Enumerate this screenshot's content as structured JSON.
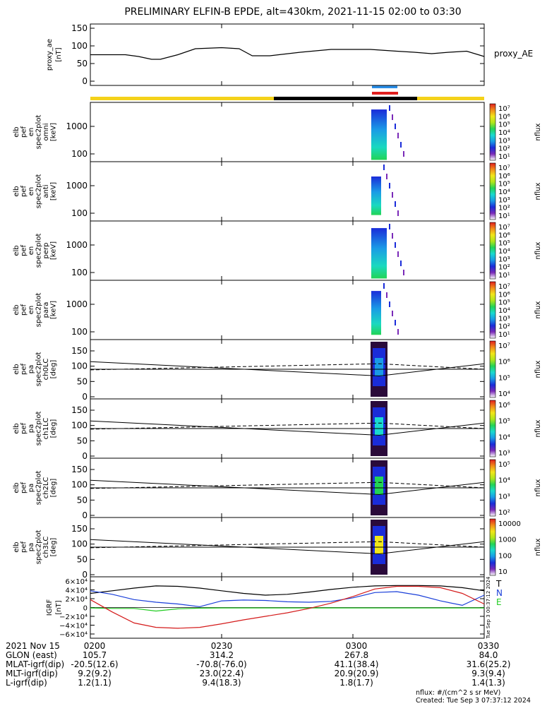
{
  "title": "PRELIMINARY ELFIN-B EPDE, alt=430km, 2021-11-15 02:00 to 03:30",
  "panels": [
    {
      "id": "proxy_ae",
      "ylabel": [
        "proxy_ae",
        "[nT]"
      ],
      "yticks": [
        "150",
        "100",
        "50",
        "0"
      ],
      "right_label": "proxy_AE"
    },
    {
      "id": "en_omni",
      "ylabel": [
        "elb",
        "pef",
        "en",
        "spec2plot",
        "omni",
        "[keV]"
      ],
      "yticks": [
        "1000",
        "100"
      ],
      "cbar_ticks": [
        "10⁷",
        "10⁶",
        "10⁵",
        "10⁴",
        "10³",
        "10²",
        "10¹"
      ],
      "cbar_label": "nflux"
    },
    {
      "id": "en_anti",
      "ylabel": [
        "elb",
        "pef",
        "en",
        "spec2plot",
        "anti",
        "[keV]"
      ],
      "yticks": [
        "1000",
        "100"
      ],
      "cbar_ticks": [
        "10⁷",
        "10⁶",
        "10⁵",
        "10⁴",
        "10³",
        "10²",
        "10¹"
      ],
      "cbar_label": "nflux"
    },
    {
      "id": "en_perp",
      "ylabel": [
        "elb",
        "pef",
        "en",
        "spec2plot",
        "perp",
        "[keV]"
      ],
      "yticks": [
        "1000",
        "100"
      ],
      "cbar_ticks": [
        "10⁷",
        "10⁶",
        "10⁵",
        "10⁴",
        "10³",
        "10²",
        "10¹"
      ],
      "cbar_label": "nflux"
    },
    {
      "id": "en_para",
      "ylabel": [
        "elb",
        "pef",
        "en",
        "spec2plot",
        "para",
        "[keV]"
      ],
      "yticks": [
        "1000",
        "100"
      ],
      "cbar_ticks": [
        "10⁷",
        "10⁶",
        "10⁵",
        "10⁴",
        "10³",
        "10²",
        "10¹"
      ],
      "cbar_label": "nflux"
    },
    {
      "id": "pa_ch0",
      "ylabel": [
        "elb",
        "pef",
        "pa",
        "spec2plot",
        "ch0LC",
        "[deg]"
      ],
      "yticks": [
        "150",
        "100",
        "50",
        "0"
      ],
      "cbar_ticks": [
        "10⁷",
        "10⁶",
        "10⁵",
        "10⁴"
      ],
      "cbar_label": "nflux"
    },
    {
      "id": "pa_ch1",
      "ylabel": [
        "elb",
        "pef",
        "pa",
        "spec2plot",
        "ch1LC",
        "[deg]"
      ],
      "yticks": [
        "150",
        "100",
        "50",
        "0"
      ],
      "cbar_ticks": [
        "10⁶",
        "10⁵",
        "10⁴",
        "10³"
      ],
      "cbar_label": "nflux"
    },
    {
      "id": "pa_ch2",
      "ylabel": [
        "elb",
        "pef",
        "pa",
        "spec2plot",
        "ch2LC",
        "[deg]"
      ],
      "yticks": [
        "150",
        "100",
        "50",
        "0"
      ],
      "cbar_ticks": [
        "10⁵",
        "10⁴",
        "10³",
        "10²"
      ],
      "cbar_label": "nflux"
    },
    {
      "id": "pa_ch3",
      "ylabel": [
        "elb",
        "pef",
        "pa",
        "spec2plot",
        "ch3LC",
        "[deg]"
      ],
      "yticks": [
        "150",
        "100",
        "50",
        "0"
      ],
      "cbar_ticks": [
        "10000",
        "1000",
        "100",
        "10"
      ],
      "cbar_label": "nflux"
    },
    {
      "id": "igrf",
      "ylabel": [
        "IGRF",
        "[nT]"
      ],
      "yticks": [
        "6×10⁴",
        "4×10⁴",
        "2×10⁴",
        "0",
        "−2×10⁴",
        "−4×10⁴",
        "−6×10⁴"
      ],
      "legend": [
        {
          "text": "T",
          "color": "#000000"
        },
        {
          "text": "N",
          "color": "#1a3fd9"
        },
        {
          "text": "E",
          "color": "#22cc22"
        }
      ]
    }
  ],
  "chart_data": [
    {
      "type": "line",
      "panel": "proxy_ae",
      "ylabel": "proxy_ae [nT]",
      "ylim": [
        0,
        150
      ],
      "x": [
        "02:00",
        "02:08",
        "02:11",
        "02:14",
        "02:16",
        "02:20",
        "02:24",
        "02:30",
        "02:34",
        "02:37",
        "02:41",
        "02:48",
        "02:55",
        "03:04",
        "03:10",
        "03:14",
        "03:18",
        "03:22",
        "03:26",
        "03:30"
      ],
      "series": [
        {
          "name": "proxy_AE",
          "values": [
            75,
            75,
            70,
            62,
            62,
            75,
            92,
            95,
            92,
            72,
            72,
            82,
            90,
            90,
            85,
            82,
            78,
            82,
            85,
            70
          ]
        }
      ]
    },
    {
      "type": "line",
      "panel": "pa_ch0..pa_ch3",
      "ylabel": "[deg]",
      "ylim": [
        0,
        180
      ],
      "x": [
        "02:00",
        "03:06",
        "03:30"
      ],
      "series": [
        {
          "values": [
            115,
            68,
            108
          ],
          "style": "solid"
        },
        {
          "values": [
            88,
            108,
            90
          ],
          "style": "dashed"
        },
        {
          "values": [
            90,
            90,
            90
          ],
          "style": "solid"
        }
      ]
    },
    {
      "type": "line",
      "panel": "igrf",
      "ylabel": "IGRF [nT]",
      "ylim": [
        -60000,
        60000
      ],
      "x": [
        "02:00",
        "02:05",
        "02:10",
        "02:15",
        "02:20",
        "02:25",
        "02:30",
        "02:35",
        "02:40",
        "02:45",
        "02:50",
        "02:55",
        "03:00",
        "03:05",
        "03:10",
        "03:15",
        "03:20",
        "03:25",
        "03:30"
      ],
      "series": [
        {
          "name": "T",
          "values": [
            32000,
            38000,
            44000,
            49000,
            48000,
            44000,
            38000,
            32000,
            28000,
            30000,
            35000,
            41000,
            46000,
            49000,
            50000,
            50000,
            49000,
            45000,
            38000
          ]
        },
        {
          "name": "N",
          "values": [
            38000,
            30000,
            18000,
            12000,
            8000,
            2000,
            15000,
            17000,
            16000,
            13000,
            12000,
            14000,
            22000,
            34000,
            36000,
            28000,
            15000,
            5000,
            28000
          ]
        },
        {
          "name": "E",
          "values": [
            -1000,
            -2000,
            -2000,
            -8000,
            -3000,
            -1500,
            -1000,
            -1000,
            -1000,
            -1000,
            -1000,
            -1000,
            -1000,
            -1000,
            -1000,
            -1000,
            -1000,
            -1000,
            -1000
          ]
        },
        {
          "name": "",
          "values": [
            18000,
            -10000,
            -35000,
            -45000,
            -47000,
            -45000,
            -37000,
            -28000,
            -20000,
            -12000,
            -2000,
            10000,
            25000,
            42000,
            48000,
            48000,
            45000,
            32000,
            8000
          ]
        }
      ]
    }
  ],
  "footer": {
    "columns": [
      "0200",
      "0230",
      "0300",
      "0330"
    ],
    "rows": [
      {
        "label": "2021 Nov 15",
        "values": [
          "0200",
          "0230",
          "0300",
          "0330"
        ]
      },
      {
        "label": "GLON (east)",
        "values": [
          "105.7",
          "314.2",
          "267.8",
          "84.0"
        ]
      },
      {
        "label": "MLAT-igrf(dip)",
        "values": [
          "-20.5(12.6)",
          "-70.8(-76.0)",
          "41.1(38.4)",
          "31.6(25.2)"
        ]
      },
      {
        "label": "MLT-igrf(dip)",
        "values": [
          "9.2(9.2)",
          "23.0(22.4)",
          "20.9(20.9)",
          "9.3(9.4)"
        ]
      },
      {
        "label": "L-igrf(dip)",
        "values": [
          "1.2(1.1)",
          "9.4(18.3)",
          "1.8(1.7)",
          "1.4(1.3)"
        ]
      }
    ],
    "units_line1": "nflux: #/(cm^2 s sr MeV)",
    "units_line2": "Created: Tue Sep  3 07:37:12 2024",
    "side_stamp": "Tue Sep  3 00:37:12 2024"
  },
  "colors": {
    "sunlight": "#f4d21a",
    "shadow": "#000000",
    "T": "#000000",
    "N": "#1a3fd9",
    "E": "#22cc22",
    "Z": "#d41a1a"
  }
}
